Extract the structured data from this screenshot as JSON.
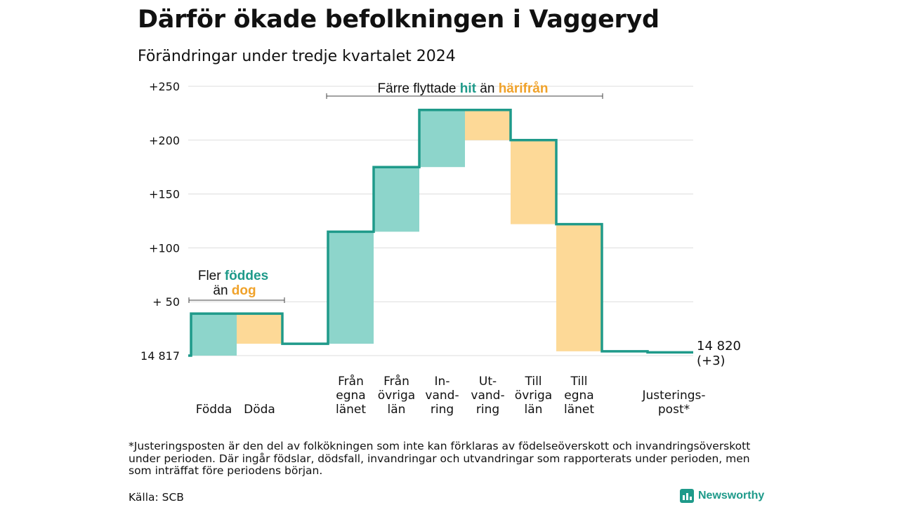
{
  "title": "Därför ökade befolkningen i Vaggeryd",
  "subtitle": "Förändringar under tredje kvartalet 2024",
  "colors": {
    "line": "#1f9a8a",
    "positive": "#8dd5cb",
    "negative": "#fdd997",
    "teal_text": "#1f9a8a",
    "orange_text": "#f0a22a",
    "grid": "#dddddd"
  },
  "annotations": {
    "births": {
      "prefix": "Fler ",
      "highlight1": "föddes",
      "line2_prefix": "än ",
      "highlight2": "dog"
    },
    "migration": {
      "prefix": "Färre flyttade ",
      "highlight1": "hit",
      "middle": " än ",
      "highlight2": "härifrån"
    }
  },
  "chart_data": {
    "type": "waterfall",
    "title": "Därför ökade befolkningen i Vaggeryd",
    "subtitle": "Förändringar under tredje kvartalet 2024",
    "baseline": 14817,
    "baseline_label": "14 817",
    "end_label": [
      "14 820",
      "(+3)"
    ],
    "ylim": [
      0,
      250
    ],
    "yticks": [
      {
        "value": 0,
        "label": "14 817"
      },
      {
        "value": 50,
        "label": "+ 50"
      },
      {
        "value": 100,
        "label": "+100"
      },
      {
        "value": 150,
        "label": "+150"
      },
      {
        "value": 200,
        "label": "+200"
      },
      {
        "value": 250,
        "label": "+250"
      }
    ],
    "grid": true,
    "steps": [
      {
        "label": [
          "Födda"
        ],
        "from": 0,
        "to": 39,
        "type": "positive"
      },
      {
        "label": [
          "Döda"
        ],
        "from": 39,
        "to": 11,
        "type": "negative"
      },
      {
        "label": [
          "Från",
          "egna",
          "länet"
        ],
        "from": 11,
        "to": 115,
        "type": "positive"
      },
      {
        "label": [
          "Från",
          "övriga",
          "län"
        ],
        "from": 115,
        "to": 175,
        "type": "positive"
      },
      {
        "label": [
          "In-",
          "vand-",
          "ring"
        ],
        "from": 175,
        "to": 228,
        "type": "positive"
      },
      {
        "label": [
          "Ut-",
          "vand-",
          "ring"
        ],
        "from": 228,
        "to": 200,
        "type": "negative"
      },
      {
        "label": [
          "Till",
          "övriga",
          "län"
        ],
        "from": 200,
        "to": 122,
        "type": "negative"
      },
      {
        "label": [
          "Till",
          "egna",
          "länet"
        ],
        "from": 122,
        "to": 4,
        "type": "negative"
      },
      {
        "label": [
          "Justerings-",
          "post*"
        ],
        "from": 4,
        "to": 3,
        "type": "adjustment"
      }
    ]
  },
  "footnote": "*Justeringsposten är den del av folkökningen som inte kan förklaras av födelseöverskott och invandringsöverskott under perioden. Där ingår födslar, dödsfall, invandringar och utvandringar som rapporterats under perioden, men som inträffat före periodens början.",
  "source": "Källa: SCB",
  "logo_text": "Newsworthy"
}
